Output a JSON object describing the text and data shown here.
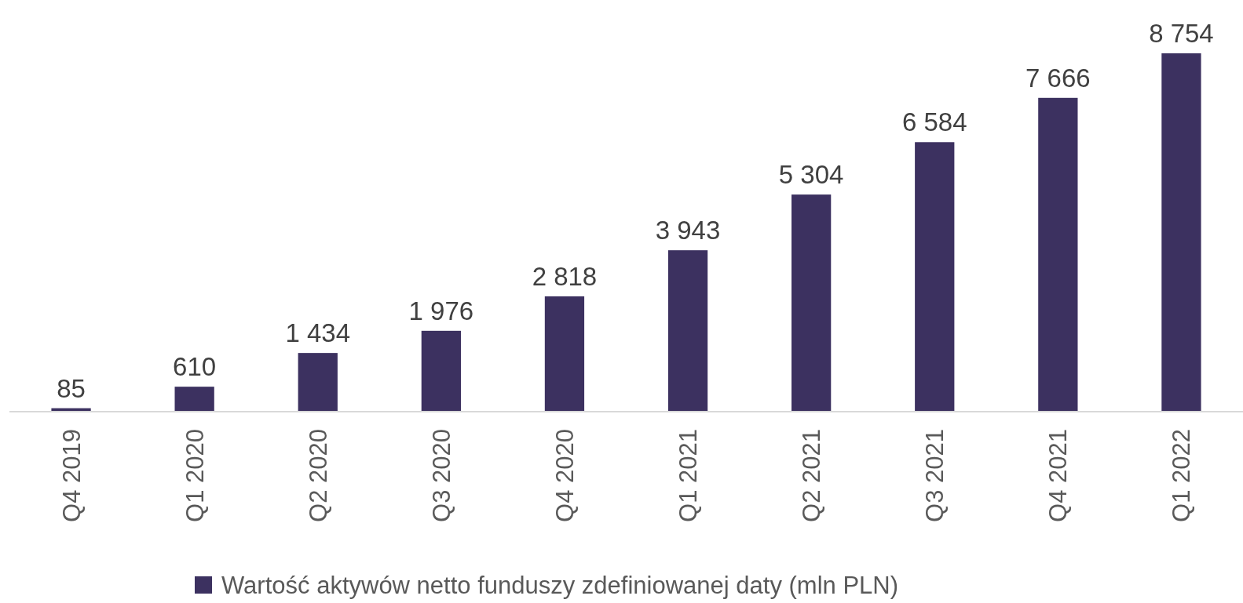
{
  "chart_data": {
    "type": "bar",
    "categories": [
      "Q4 2019",
      "Q1 2020",
      "Q2 2020",
      "Q3 2020",
      "Q4 2020",
      "Q1 2021",
      "Q2 2021",
      "Q3 2021",
      "Q4 2021",
      "Q1 2022"
    ],
    "series": [
      {
        "name": "Wartość aktywów netto funduszy zdefiniowanej daty (mln PLN)",
        "color": "#3c3160",
        "values": [
          85,
          610,
          1434,
          1976,
          2818,
          3943,
          5304,
          6584,
          7666,
          8754
        ],
        "value_labels": [
          "85",
          "610",
          "1 434",
          "1 976",
          "2 818",
          "3 943",
          "5 304",
          "6 584",
          "7 666",
          "8 754"
        ]
      }
    ],
    "legend": "bottom"
  }
}
